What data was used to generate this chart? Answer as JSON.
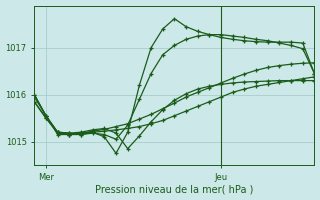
{
  "bg_color": "#cde8e8",
  "grid_color": "#aacccc",
  "line_color": "#1a5c1a",
  "xlabel": "Pression niveau de la mer( hPa )",
  "xlabel_color": "#1a5c1a",
  "tick_color": "#1a5c1a",
  "ylim": [
    1014.5,
    1017.9
  ],
  "yticks": [
    1015,
    1016,
    1017
  ],
  "xlim": [
    0,
    48
  ],
  "x_mer": 2,
  "x_jeu": 32,
  "vline_x": 32,
  "figsize": [
    3.2,
    2.0
  ],
  "dpi": 100,
  "series": [
    {
      "x": [
        0,
        2,
        4,
        6,
        8,
        10,
        12,
        14,
        16,
        18,
        20,
        22,
        24,
        26,
        28,
        30,
        32,
        34,
        36,
        38,
        40,
        42,
        44,
        46,
        48
      ],
      "y": [
        1015.95,
        1015.55,
        1015.15,
        1015.15,
        1015.18,
        1015.2,
        1015.22,
        1015.25,
        1015.28,
        1015.32,
        1015.38,
        1015.45,
        1015.55,
        1015.65,
        1015.75,
        1015.85,
        1015.95,
        1016.05,
        1016.12,
        1016.18,
        1016.22,
        1016.26,
        1016.3,
        1016.34,
        1016.38
      ]
    },
    {
      "x": [
        0,
        2,
        4,
        6,
        8,
        10,
        12,
        14,
        16,
        18,
        20,
        22,
        24,
        26,
        28,
        30,
        32,
        34,
        36,
        38,
        40,
        42,
        44,
        46,
        48
      ],
      "y": [
        1015.85,
        1015.5,
        1015.18,
        1015.15,
        1015.18,
        1015.22,
        1015.26,
        1015.32,
        1015.38,
        1015.48,
        1015.58,
        1015.7,
        1015.82,
        1015.95,
        1016.05,
        1016.15,
        1016.25,
        1016.35,
        1016.44,
        1016.52,
        1016.58,
        1016.62,
        1016.65,
        1016.67,
        1016.68
      ]
    },
    {
      "x": [
        0,
        2,
        4,
        6,
        8,
        10,
        12,
        14,
        16,
        18,
        20,
        22,
        24,
        26,
        28,
        30,
        32,
        34,
        36,
        38,
        40,
        42,
        44,
        46,
        48
      ],
      "y": [
        1016.0,
        1015.55,
        1015.2,
        1015.15,
        1015.15,
        1015.2,
        1015.1,
        1014.75,
        1015.2,
        1016.2,
        1017.0,
        1017.4,
        1017.62,
        1017.45,
        1017.35,
        1017.28,
        1017.22,
        1017.18,
        1017.15,
        1017.13,
        1017.12,
        1017.12,
        1017.12,
        1017.1,
        1016.45
      ]
    },
    {
      "x": [
        0,
        2,
        4,
        6,
        8,
        10,
        12,
        14,
        16,
        18,
        20,
        22,
        24,
        26,
        28,
        30,
        32,
        34,
        36,
        38,
        40,
        42,
        44,
        46,
        48
      ],
      "y": [
        1016.0,
        1015.55,
        1015.2,
        1015.18,
        1015.15,
        1015.18,
        1015.15,
        1015.05,
        1015.35,
        1015.9,
        1016.45,
        1016.85,
        1017.05,
        1017.18,
        1017.25,
        1017.28,
        1017.28,
        1017.25,
        1017.22,
        1017.18,
        1017.15,
        1017.1,
        1017.05,
        1016.98,
        1016.45
      ]
    },
    {
      "x": [
        0,
        2,
        4,
        6,
        8,
        10,
        12,
        14,
        16,
        18,
        20,
        22,
        24,
        26,
        28,
        30,
        32,
        34,
        36,
        38,
        40,
        42,
        44,
        46,
        48
      ],
      "y": [
        1015.85,
        1015.5,
        1015.2,
        1015.18,
        1015.2,
        1015.25,
        1015.28,
        1015.18,
        1014.85,
        1015.12,
        1015.42,
        1015.68,
        1015.88,
        1016.02,
        1016.12,
        1016.18,
        1016.22,
        1016.25,
        1016.27,
        1016.28,
        1016.29,
        1016.3,
        1016.3,
        1016.3,
        1016.3
      ]
    }
  ]
}
